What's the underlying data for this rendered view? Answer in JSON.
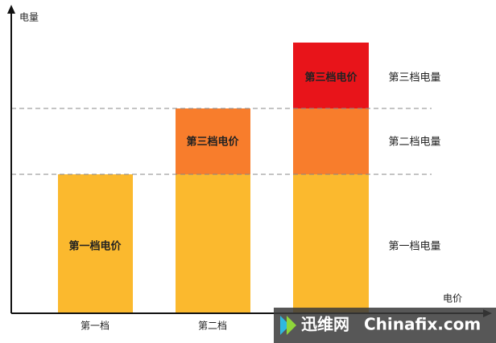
{
  "axes": {
    "y_label": "电量",
    "x_label": "电价"
  },
  "bars": [
    {
      "category": "第一档",
      "price_label": "第一档电价"
    },
    {
      "category": "第二档",
      "price_label": "第三档电价"
    },
    {
      "price_label": "第三档电价"
    }
  ],
  "tiers": [
    "第三档电量",
    "第二档电量",
    "第一档电量"
  ],
  "watermark": {
    "brand": "迅维网",
    "site": "Chinafix.com"
  }
}
